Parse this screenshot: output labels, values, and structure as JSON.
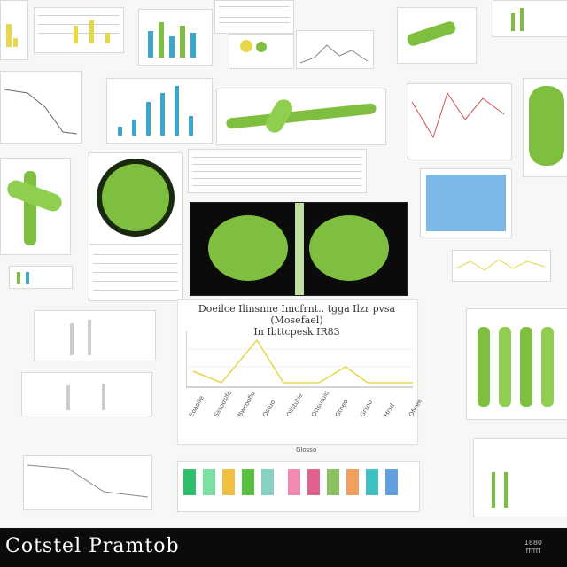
{
  "footer": {
    "title": "Cotstel Pramtob",
    "right_text": "1880\nffffff"
  },
  "main_chart": {
    "title_line1": "Doeilce Ilinsnne Imcfrnt.. tgga Ilzr pvsa (Mosefael)",
    "title_line2": "In Ibttcpesk IR83",
    "tick_labels": [
      "Eoaolfe",
      "Sssooslfe",
      "Bwcoofiu",
      "Ostuo",
      "Ollstutie",
      "Ottsutuiu",
      "Gtneo",
      "Grsoo",
      "Hrsd",
      "Ofwee"
    ],
    "x_label": "Glosso"
  },
  "colors": {
    "accent_green": "#7fbf3f",
    "chart_yellow": "#e6d84a",
    "chart_blue": "#3aa6c9"
  },
  "icons": {
    "leaf": "leaf-icon"
  }
}
